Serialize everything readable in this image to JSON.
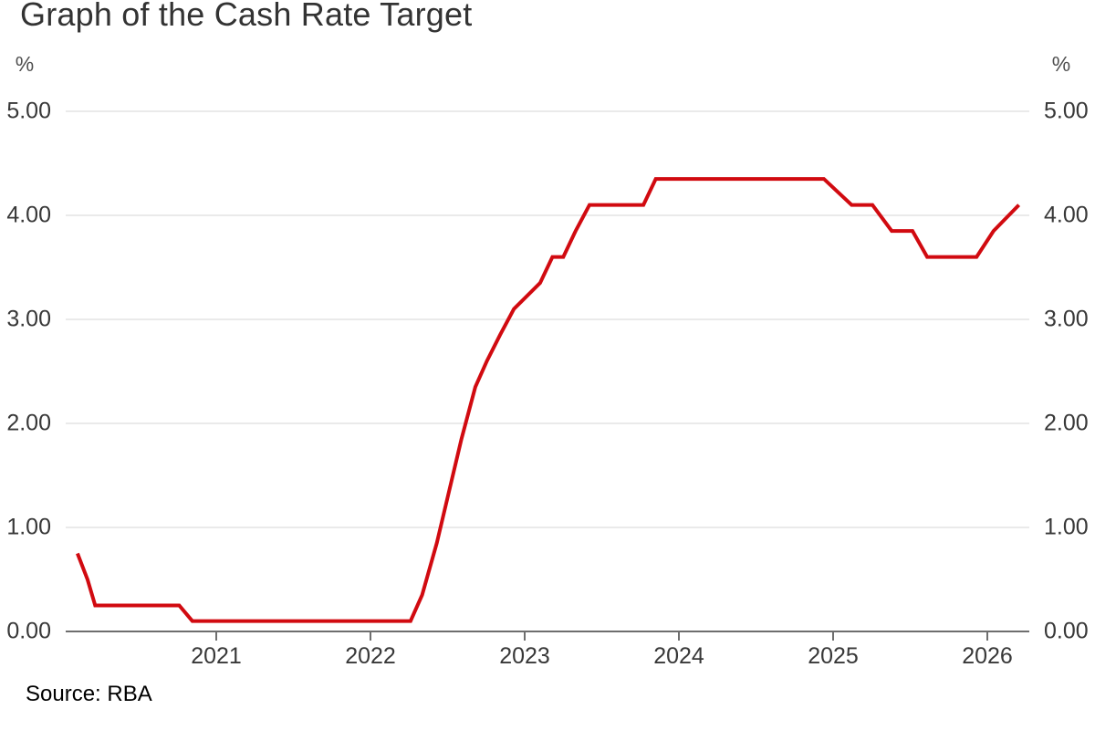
{
  "title": "Graph of the Cash Rate Target",
  "source_note": "Source: RBA",
  "y_axis_unit_left": "%",
  "y_axis_unit_right": "%",
  "chart_data": {
    "type": "line",
    "title": "Graph of the Cash Rate Target",
    "xlabel": "",
    "ylabel": "%",
    "xlim": [
      2020.02,
      2026.27
    ],
    "ylim": [
      0,
      5
    ],
    "grid": "horizontal",
    "legend": "none",
    "line_color": "#d10a10",
    "axis_color": "#6e6e6e",
    "gridline_color": "#e3e3e3",
    "y_ticks": [
      {
        "value": 0,
        "label": "0.00"
      },
      {
        "value": 1,
        "label": "1.00"
      },
      {
        "value": 2,
        "label": "2.00"
      },
      {
        "value": 3,
        "label": "3.00"
      },
      {
        "value": 4,
        "label": "4.00"
      },
      {
        "value": 5,
        "label": "5.00"
      }
    ],
    "x_ticks": [
      {
        "value": 2021,
        "label": "2021"
      },
      {
        "value": 2022,
        "label": "2022"
      },
      {
        "value": 2023,
        "label": "2023"
      },
      {
        "value": 2024,
        "label": "2024"
      },
      {
        "value": 2025,
        "label": "2025"
      },
      {
        "value": 2026,
        "label": "2026"
      }
    ],
    "series": [
      {
        "name": "Cash Rate Target (%)",
        "color": "#d10a10",
        "points": [
          [
            2020.1,
            0.75
          ],
          [
            2020.165,
            0.5
          ],
          [
            2020.215,
            0.25
          ],
          [
            2020.76,
            0.25
          ],
          [
            2020.845,
            0.1
          ],
          [
            2022.26,
            0.1
          ],
          [
            2022.335,
            0.35
          ],
          [
            2022.43,
            0.85
          ],
          [
            2022.51,
            1.35
          ],
          [
            2022.59,
            1.85
          ],
          [
            2022.68,
            2.35
          ],
          [
            2022.755,
            2.6
          ],
          [
            2022.84,
            2.85
          ],
          [
            2022.93,
            3.1
          ],
          [
            2023.1,
            3.35
          ],
          [
            2023.18,
            3.6
          ],
          [
            2023.25,
            3.6
          ],
          [
            2023.33,
            3.85
          ],
          [
            2023.42,
            4.1
          ],
          [
            2023.77,
            4.1
          ],
          [
            2023.85,
            4.35
          ],
          [
            2024.94,
            4.35
          ],
          [
            2025.12,
            4.1
          ],
          [
            2025.255,
            4.1
          ],
          [
            2025.38,
            3.85
          ],
          [
            2025.515,
            3.85
          ],
          [
            2025.61,
            3.6
          ],
          [
            2025.93,
            3.6
          ],
          [
            2026.04,
            3.85
          ],
          [
            2026.205,
            4.1
          ]
        ]
      }
    ],
    "source": "Source: RBA"
  }
}
